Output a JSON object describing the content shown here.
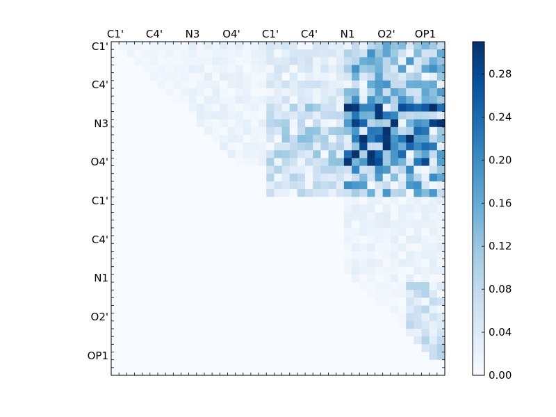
{
  "chart_data": {
    "type": "heatmap",
    "title": "",
    "xlabel": "",
    "ylabel": "",
    "x_ticklabels": [
      "C1'",
      "C4'",
      "N3",
      "O4'",
      "C1'",
      "C4'",
      "N1",
      "O2'",
      "OP1"
    ],
    "y_ticklabels": [
      "C1'",
      "C4'",
      "N3",
      "O4'",
      "C1'",
      "C4'",
      "N1",
      "O2'",
      "OP1"
    ],
    "colorbar": {
      "range": [
        0.0,
        0.31
      ],
      "ticks": [
        0.0,
        0.04,
        0.08,
        0.12,
        0.16,
        0.2,
        0.24,
        0.28
      ],
      "tick_labels": [
        "0.00",
        "0.04",
        "0.08",
        "0.12",
        "0.16",
        "0.20",
        "0.24",
        "0.28"
      ],
      "colormap": "Blues"
    },
    "grid_size": 43,
    "region_means": [
      [
        0.01,
        0.02,
        0.04,
        0.12
      ],
      [
        0.0,
        0.02,
        0.08,
        0.2
      ],
      [
        0.0,
        0.0,
        0.06,
        0.13
      ],
      [
        0.0,
        0.0,
        0.0,
        0.02
      ],
      [
        0.0,
        0.0,
        0.0,
        0.06
      ]
    ],
    "colors": {
      "low": "#f7fbff",
      "mid": "#6baed6",
      "high": "#08306b"
    }
  }
}
